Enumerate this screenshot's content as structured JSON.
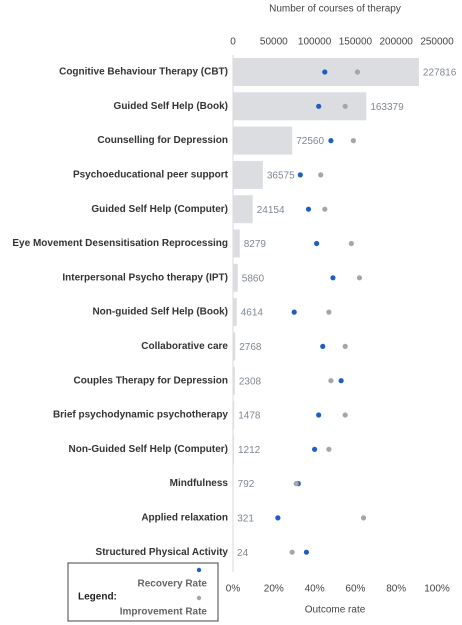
{
  "chart_data": {
    "type": "bar",
    "xlabel": "Number of courses of therapy",
    "x2label": "Outcome rate",
    "legend_title": "Legend:",
    "categories": [
      "Cognitive Behaviour Therapy (CBT)",
      "Guided Self Help (Book)",
      "Counselling for Depression",
      "Psychoeducational peer support",
      "Guided Self Help (Computer)",
      "Eye Movement Desensitisation Reprocessing",
      "Interpersonal Psycho therapy (IPT)",
      "Non-guided Self Help (Book)",
      "Collaborative care",
      "Couples Therapy for Depression",
      "Brief psychodynamic psychotherapy",
      "Non-Guided Self Help (Computer)",
      "Mindfulness",
      "Applied relaxation",
      "Structured Physical Activity"
    ],
    "values": [
      227816,
      163379,
      72560,
      36575,
      24154,
      8279,
      5860,
      4614,
      2768,
      2308,
      1478,
      1212,
      792,
      321,
      24
    ],
    "color": "#dcdde0",
    "xlim": [
      0,
      250000
    ],
    "xticks": [
      0,
      50000,
      100000,
      150000,
      200000,
      250000
    ],
    "x2lim": [
      0,
      100
    ],
    "x2ticks": [
      {
        "value": 0,
        "label": "0%"
      },
      {
        "value": 20,
        "label": "20%"
      },
      {
        "value": 40,
        "label": "40%"
      },
      {
        "value": 60,
        "label": "60%"
      },
      {
        "value": 80,
        "label": "80%"
      },
      {
        "value": 100,
        "label": "100%"
      }
    ],
    "series": [
      {
        "name": "Recovery Rate",
        "color": "#1f5fbf",
        "axis": "x2",
        "values": [
          45,
          42,
          48,
          33,
          37,
          41,
          49,
          30,
          44,
          53,
          42,
          40,
          32,
          22,
          36
        ]
      },
      {
        "name": "Improvement Rate",
        "color": "#a6a6a6",
        "axis": "x2",
        "values": [
          61,
          55,
          59,
          43,
          45,
          58,
          62,
          47,
          55,
          48,
          55,
          47,
          31,
          64,
          29
        ]
      }
    ]
  }
}
